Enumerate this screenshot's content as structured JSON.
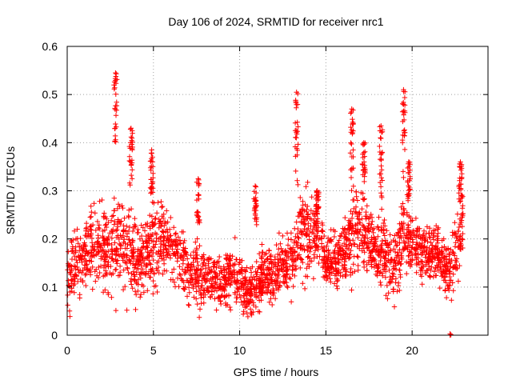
{
  "chart_data": {
    "type": "scatter",
    "title": "Day 106 of 2024, SRMTID for receiver nrc1",
    "xlabel": "GPS time / hours",
    "ylabel": "SRMTID / TECUs",
    "xlim": [
      0,
      24.4
    ],
    "ylim": [
      0,
      0.6
    ],
    "x_ticks": [
      0,
      5,
      10,
      15,
      20
    ],
    "y_ticks": [
      0,
      0.1,
      0.2,
      0.3,
      0.4,
      0.5,
      0.6
    ],
    "x_tick_labels": [
      "0",
      "5",
      "10",
      "15",
      "20"
    ],
    "y_tick_labels": [
      "0",
      "0.1",
      "0.2",
      "0.3",
      "0.4",
      "0.5",
      "0.6"
    ],
    "grid": true,
    "marker": "plus",
    "color": "#ff0000",
    "profile": [
      [
        0.0,
        0.12,
        0.06
      ],
      [
        0.5,
        0.15,
        0.07
      ],
      [
        1.0,
        0.17,
        0.07
      ],
      [
        1.5,
        0.19,
        0.08
      ],
      [
        2.0,
        0.18,
        0.07
      ],
      [
        2.5,
        0.17,
        0.08
      ],
      [
        3.0,
        0.2,
        0.09
      ],
      [
        3.5,
        0.17,
        0.08
      ],
      [
        4.0,
        0.15,
        0.07
      ],
      [
        4.5,
        0.16,
        0.07
      ],
      [
        5.0,
        0.18,
        0.08
      ],
      [
        5.5,
        0.2,
        0.07
      ],
      [
        6.0,
        0.17,
        0.06
      ],
      [
        6.5,
        0.16,
        0.06
      ],
      [
        7.0,
        0.14,
        0.06
      ],
      [
        7.5,
        0.13,
        0.06
      ],
      [
        8.0,
        0.11,
        0.05
      ],
      [
        8.5,
        0.12,
        0.05
      ],
      [
        9.0,
        0.11,
        0.05
      ],
      [
        9.5,
        0.12,
        0.05
      ],
      [
        10.0,
        0.12,
        0.05
      ],
      [
        10.5,
        0.08,
        0.04
      ],
      [
        11.0,
        0.1,
        0.05
      ],
      [
        11.5,
        0.13,
        0.05
      ],
      [
        12.0,
        0.13,
        0.05
      ],
      [
        12.5,
        0.15,
        0.05
      ],
      [
        13.0,
        0.14,
        0.06
      ],
      [
        13.5,
        0.22,
        0.08
      ],
      [
        14.0,
        0.2,
        0.08
      ],
      [
        14.5,
        0.22,
        0.06
      ],
      [
        15.0,
        0.15,
        0.04
      ],
      [
        15.5,
        0.16,
        0.05
      ],
      [
        16.0,
        0.17,
        0.05
      ],
      [
        16.5,
        0.22,
        0.08
      ],
      [
        17.0,
        0.21,
        0.08
      ],
      [
        17.5,
        0.2,
        0.07
      ],
      [
        18.0,
        0.17,
        0.07
      ],
      [
        18.5,
        0.16,
        0.07
      ],
      [
        19.0,
        0.14,
        0.06
      ],
      [
        19.5,
        0.21,
        0.08
      ],
      [
        20.0,
        0.19,
        0.06
      ],
      [
        20.5,
        0.18,
        0.05
      ],
      [
        21.0,
        0.17,
        0.05
      ],
      [
        21.5,
        0.17,
        0.05
      ],
      [
        22.0,
        0.13,
        0.05
      ],
      [
        22.5,
        0.16,
        0.06
      ],
      [
        22.9,
        0.24,
        0.07
      ]
    ],
    "spikes": [
      [
        2.8,
        0.4,
        0.545
      ],
      [
        3.7,
        0.3,
        0.43
      ],
      [
        4.9,
        0.28,
        0.385
      ],
      [
        7.6,
        0.22,
        0.325
      ],
      [
        10.9,
        0.22,
        0.31
      ],
      [
        13.3,
        0.3,
        0.505
      ],
      [
        14.5,
        0.25,
        0.3
      ],
      [
        16.5,
        0.3,
        0.47
      ],
      [
        17.2,
        0.26,
        0.4
      ],
      [
        18.2,
        0.28,
        0.435
      ],
      [
        19.5,
        0.3,
        0.51
      ],
      [
        19.8,
        0.27,
        0.36
      ],
      [
        22.8,
        0.25,
        0.36
      ]
    ],
    "outlier_points": [
      [
        22.2,
        0.0
      ],
      [
        22.2,
        0.003
      ],
      [
        22.25,
        0.001
      ]
    ],
    "x_range": [
      0,
      22.95
    ],
    "n_points": 2600
  }
}
